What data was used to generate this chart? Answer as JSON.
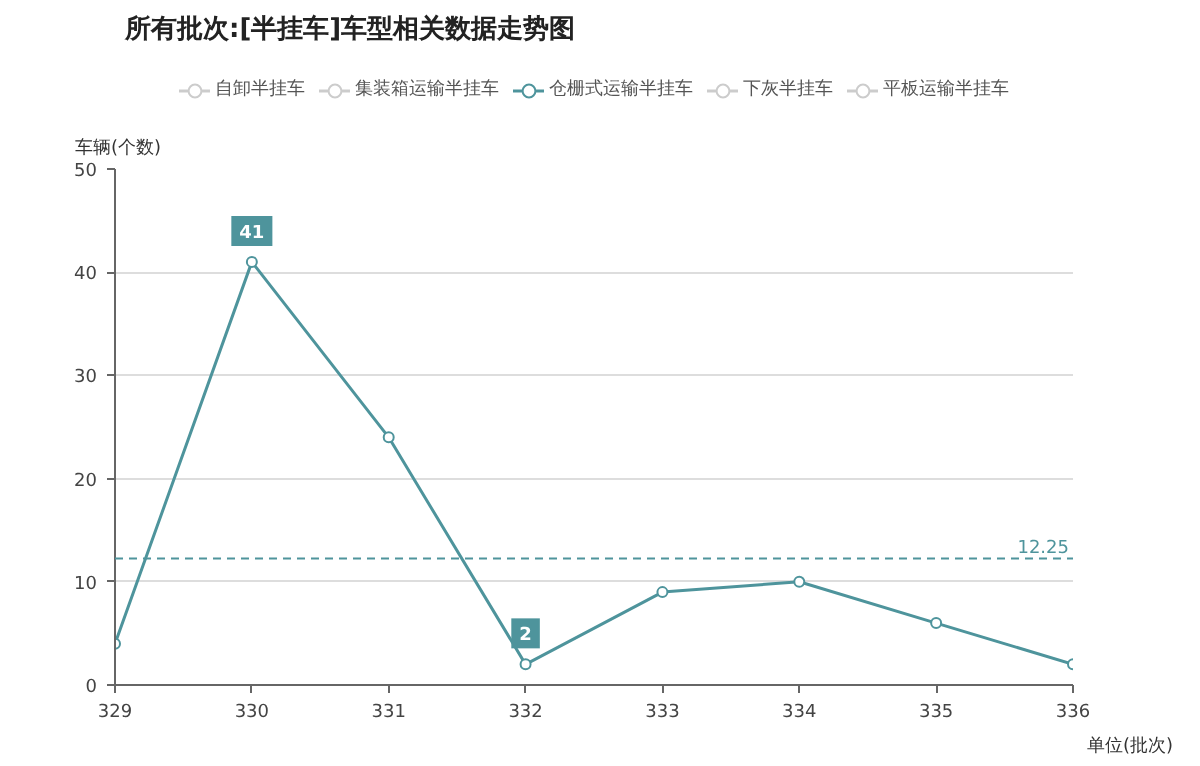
{
  "chart_data": {
    "type": "line",
    "title": "所有批次:[半挂车]车型相关数据走势图",
    "xlabel": "单位(批次)",
    "ylabel": "车辆(个数)",
    "categories": [
      "329",
      "330",
      "331",
      "332",
      "333",
      "334",
      "335",
      "336"
    ],
    "series": [
      {
        "name": "自卸半挂车",
        "color": "#cccccc",
        "values": [
          null,
          null,
          null,
          null,
          null,
          null,
          null,
          null
        ]
      },
      {
        "name": "集装箱运输半挂车",
        "color": "#cccccc",
        "values": [
          null,
          null,
          null,
          null,
          null,
          null,
          null,
          null
        ]
      },
      {
        "name": "仓栅式运输半挂车",
        "color": "#4e949c",
        "values": [
          4,
          41,
          24,
          2,
          9,
          10,
          6,
          2
        ]
      },
      {
        "name": "下灰半挂车",
        "color": "#cccccc",
        "values": [
          null,
          null,
          null,
          null,
          null,
          null,
          null,
          null
        ]
      },
      {
        "name": "平板运输半挂车",
        "color": "#cccccc",
        "values": [
          null,
          null,
          null,
          null,
          null,
          null,
          null,
          null
        ]
      }
    ],
    "annotations": [
      {
        "text": "41",
        "x": "330",
        "y": 41
      },
      {
        "text": "2",
        "x": "332",
        "y": 2
      }
    ],
    "ref_lines": [
      {
        "axis": "y",
        "value": 12.25,
        "label": "12.25",
        "color": "#4e949c",
        "line_style": "dashed"
      }
    ],
    "ylim": [
      0,
      50
    ],
    "yticks": [
      0,
      10,
      20,
      30,
      40,
      50
    ],
    "grid": "y",
    "legend": "top",
    "marker": "circle",
    "line_style": "solid"
  }
}
